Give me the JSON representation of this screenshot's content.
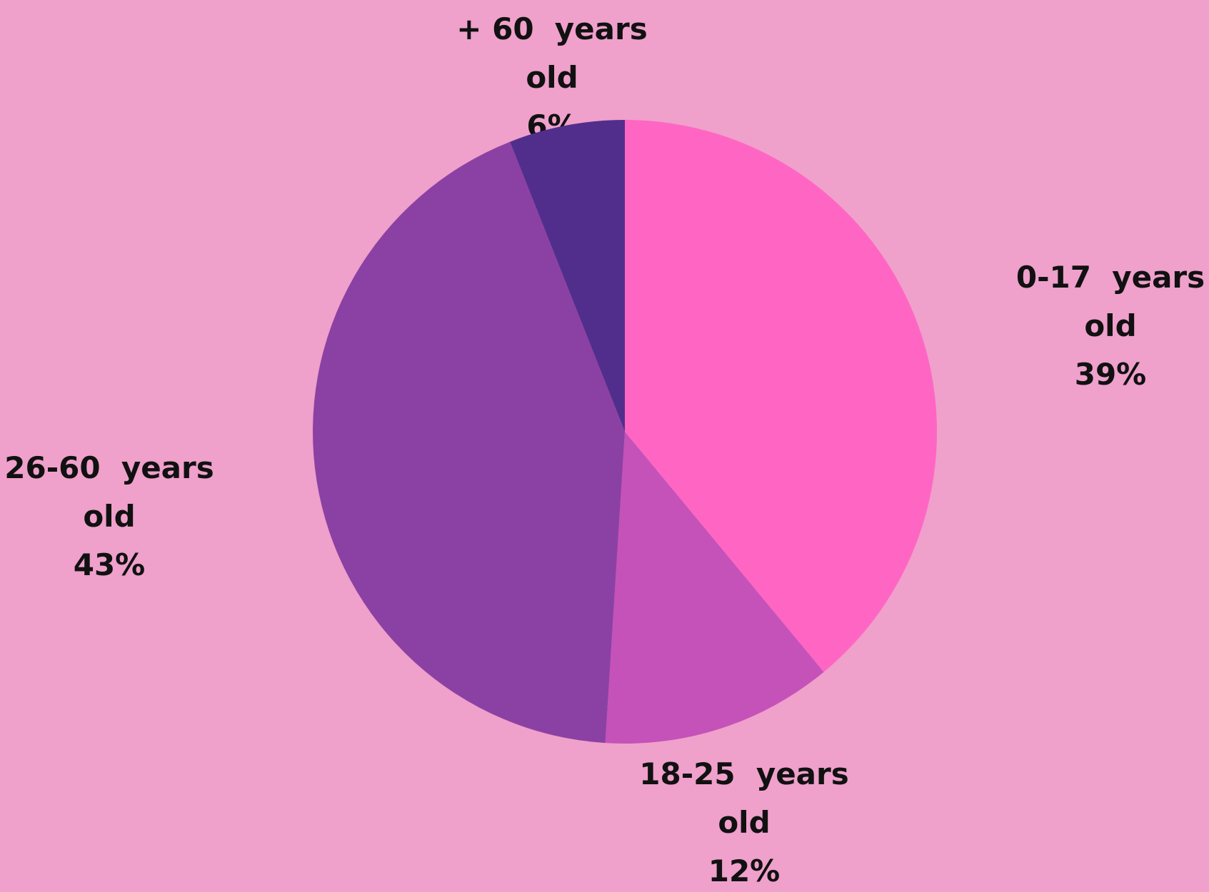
{
  "chart_data": {
    "type": "pie",
    "categories": [
      "0-17  years old",
      "18-25  years old",
      "26-60  years old",
      "+ 60  years old"
    ],
    "values": [
      39,
      12,
      43,
      6
    ],
    "value_labels": [
      "39%",
      "12%",
      "43%",
      "6%"
    ],
    "colors": [
      "#ff66c4",
      "#c552b8",
      "#8b41a3",
      "#522e8c"
    ],
    "background": "#efa0cb"
  }
}
